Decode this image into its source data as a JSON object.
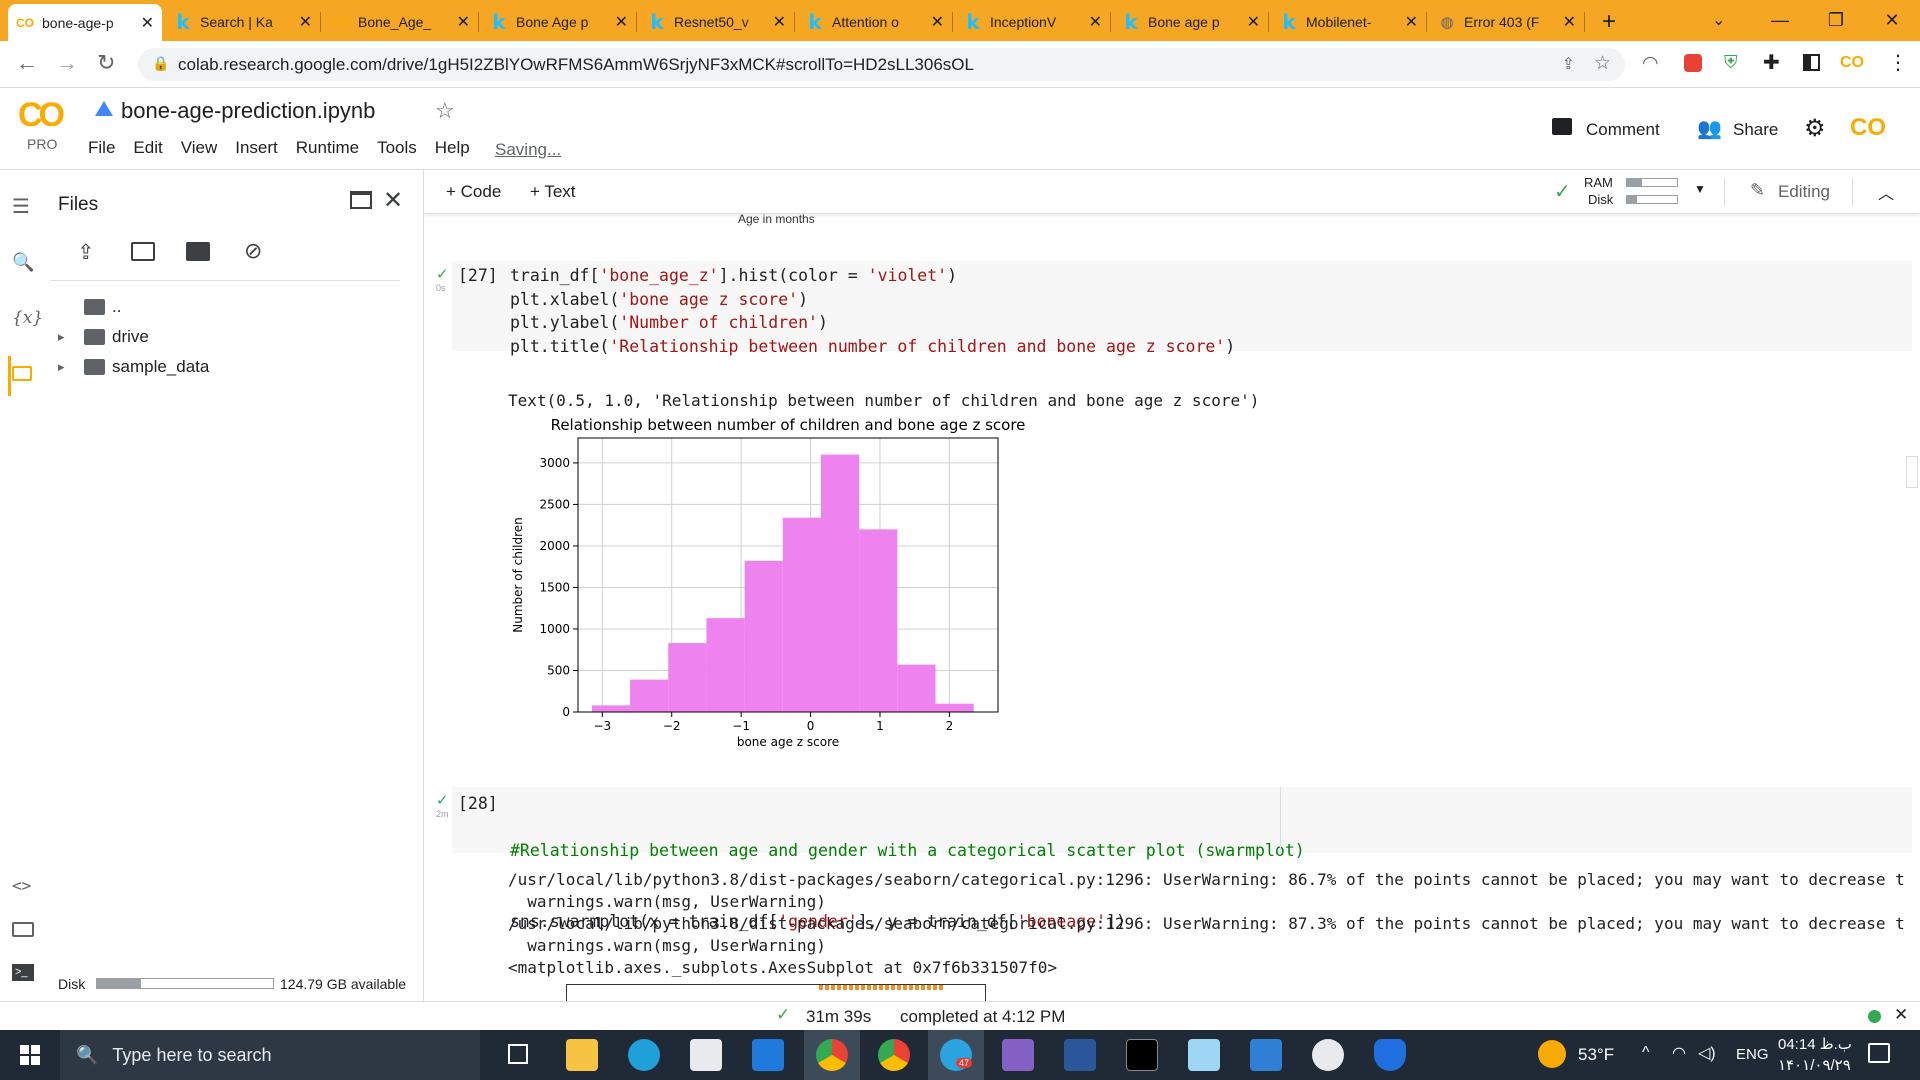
{
  "tabs": [
    {
      "label": "bone-age-p",
      "icon": "colab-icon",
      "active": true
    },
    {
      "label": "Search | Ka",
      "icon": "kaggle-icon"
    },
    {
      "label": "Bone_Age_",
      "icon": "colab-icon"
    },
    {
      "label": "Bone Age p",
      "icon": "kaggle-icon"
    },
    {
      "label": "Resnet50_v",
      "icon": "kaggle-icon"
    },
    {
      "label": "Attention o",
      "icon": "kaggle-icon"
    },
    {
      "label": "InceptionV",
      "icon": "kaggle-icon"
    },
    {
      "label": "Bone age p",
      "icon": "kaggle-icon"
    },
    {
      "label": "Mobilenet-",
      "icon": "kaggle-icon"
    },
    {
      "label": "Error 403 (F",
      "icon": "globe-icon"
    }
  ],
  "address": {
    "url": "colab.research.google.com/drive/1gH5I2ZBlYOwRFMS6AmmW6SrjyNF3xMCK#scrollTo=HD2sLL306sOL"
  },
  "notebook": {
    "title": "bone-age-prediction.ipynb",
    "logo_sub": "PRO",
    "menu": [
      "File",
      "Edit",
      "View",
      "Insert",
      "Runtime",
      "Tools",
      "Help"
    ],
    "saving": "Saving...",
    "comment": "Comment",
    "share": "Share"
  },
  "files": {
    "title": "Files",
    "items": [
      {
        "label": ".."
      },
      {
        "label": "drive"
      },
      {
        "label": "sample_data"
      }
    ],
    "disk_label": "Disk",
    "disk_available": "124.79 GB available",
    "disk_used_fraction": 0.25
  },
  "toolbar": {
    "code": "+ Code",
    "text": "+ Text",
    "ram": "RAM",
    "disk": "Disk",
    "editing": "Editing"
  },
  "prev_output_axis": "Age in months",
  "cell27": {
    "num": "[27]",
    "time": "0s",
    "lines": [
      [
        "train_df[",
        "'bone_age_z'",
        "].hist(color = ",
        "'violet'",
        ")"
      ],
      [
        "plt.xlabel(",
        "'bone age z score'",
        ")",
        "",
        ""
      ],
      [
        "plt.ylabel(",
        "'Number of children'",
        ")",
        "",
        ""
      ],
      [
        "plt.title(",
        "'Relationship between number of children and bone age z score'",
        ")",
        "",
        ""
      ]
    ],
    "output_text": "Text(0.5, 1.0, 'Relationship between number of children and bone age z score')"
  },
  "chart_data": {
    "type": "bar",
    "title": "Relationship between number of children and bone age z score",
    "xlabel": "bone age z score",
    "ylabel": "Number of children",
    "bin_edges": [
      -3.15,
      -2.6,
      -2.05,
      -1.5,
      -0.95,
      -0.4,
      0.15,
      0.7,
      1.25,
      1.8,
      2.35
    ],
    "values": [
      80,
      390,
      830,
      1130,
      1820,
      2340,
      3100,
      2200,
      570,
      100
    ],
    "xticks": [
      -3,
      -2,
      -1,
      0,
      1,
      2
    ],
    "yticks": [
      0,
      500,
      1000,
      1500,
      2000,
      2500,
      3000
    ],
    "xlim": [
      -3.35,
      2.7
    ],
    "ylim": [
      0,
      3300
    ],
    "color": "#ee82ee",
    "grid": true
  },
  "cell28": {
    "num": "[28]",
    "time": "2m",
    "comment": "#Relationship between age and gender with a categorical scatter plot (swarmplot)",
    "line2": [
      "sns.swarmplot(x = train_df[",
      "'gender'",
      "], y = train_df[",
      "'boneage'",
      "])"
    ],
    "output_lines": [
      "/usr/local/lib/python3.8/dist-packages/seaborn/categorical.py:1296: UserWarning: 86.7% of the points cannot be placed; you may want to decrease t",
      "  warnings.warn(msg, UserWarning)",
      "/usr/local/lib/python3.8/dist-packages/seaborn/categorical.py:1296: UserWarning: 87.3% of the points cannot be placed; you may want to decrease t",
      "  warnings.warn(msg, UserWarning)",
      "<matplotlib.axes._subplots.AxesSubplot at 0x7f6b331507f0>"
    ]
  },
  "status": {
    "duration": "31m 39s",
    "completed": "completed at 4:12 PM"
  },
  "taskbar": {
    "search_placeholder": "Type here to search",
    "temperature": "53°F",
    "lang": "ENG",
    "time": "04:14 ب.ظ",
    "date": "۱۴۰۱/۰۹/۲۹",
    "telegram_badge": "47"
  },
  "colors": {
    "accent": "#f9ab00",
    "tabbar": "#f5a623",
    "taskbar": "#1f2a36",
    "bars": "#ee82ee"
  }
}
